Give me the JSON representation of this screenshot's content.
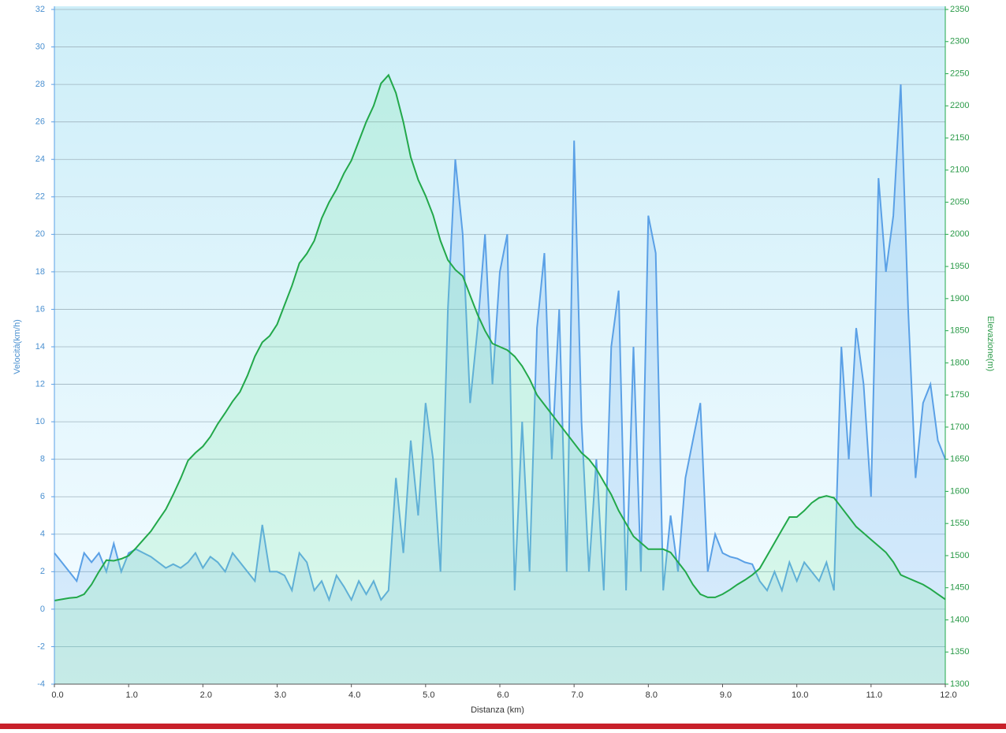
{
  "chart_data": {
    "type": "line",
    "x_label": "Distanza  (km)",
    "y_label": "Velocità(km/h)",
    "y2_label": "Elevazione(m)",
    "x": [
      0,
      0.1,
      0.2,
      0.3,
      0.4,
      0.5,
      0.6,
      0.7,
      0.8,
      0.9,
      1,
      1.1,
      1.2,
      1.3,
      1.4,
      1.5,
      1.6,
      1.7,
      1.8,
      1.9,
      2,
      2.1,
      2.2,
      2.3,
      2.4,
      2.5,
      2.6,
      2.7,
      2.8,
      2.9,
      3,
      3.1,
      3.2,
      3.3,
      3.4,
      3.5,
      3.6,
      3.7,
      3.8,
      3.9,
      4,
      4.1,
      4.2,
      4.3,
      4.4,
      4.5,
      4.6,
      4.7,
      4.8,
      4.9,
      5,
      5.1,
      5.2,
      5.3,
      5.4,
      5.5,
      5.6,
      5.7,
      5.8,
      5.9,
      6,
      6.1,
      6.2,
      6.3,
      6.4,
      6.5,
      6.6,
      6.7,
      6.8,
      6.9,
      7,
      7.1,
      7.2,
      7.3,
      7.4,
      7.5,
      7.6,
      7.7,
      7.8,
      7.9,
      8,
      8.1,
      8.2,
      8.3,
      8.4,
      8.5,
      8.6,
      8.7,
      8.8,
      8.9,
      9,
      9.1,
      9.2,
      9.3,
      9.4,
      9.5,
      9.6,
      9.7,
      9.8,
      9.9,
      10,
      10.1,
      10.2,
      10.3,
      10.4,
      10.5,
      10.6,
      10.7,
      10.8,
      10.9,
      11,
      11.1,
      11.2,
      11.3,
      11.4,
      11.5,
      11.6,
      11.7,
      11.8,
      11.9,
      12
    ],
    "series": [
      {
        "name": "Velocità",
        "color": "#5aa0e6",
        "axis": "y",
        "values": [
          3,
          2.5,
          2,
          1.5,
          3,
          2.5,
          3,
          2,
          3.5,
          2,
          3,
          3.2,
          3,
          2.8,
          2.5,
          2.2,
          2.4,
          2.2,
          2.5,
          3,
          2.2,
          2.8,
          2.5,
          2,
          3,
          2.5,
          2,
          1.5,
          4.5,
          2,
          2,
          1.8,
          1,
          3,
          2.5,
          1,
          1.5,
          0.5,
          1.8,
          1.2,
          0.5,
          1.5,
          0.8,
          1.5,
          0.5,
          1,
          7,
          3,
          9,
          5,
          11,
          8,
          2,
          16,
          24,
          20,
          11,
          15,
          20,
          12,
          18,
          20,
          1,
          10,
          2,
          15,
          19,
          8,
          16,
          2,
          25,
          10,
          2,
          8,
          1,
          14,
          17,
          1,
          14,
          2,
          21,
          19,
          1,
          5,
          2,
          7,
          9,
          11,
          2,
          4,
          3,
          2.8,
          2.7,
          2.5,
          2.4,
          1.5,
          1,
          2,
          1,
          2.5,
          1.5,
          2.5,
          2,
          1.5,
          2.5,
          1,
          14,
          8,
          15,
          12,
          6,
          23,
          18,
          21,
          28,
          16,
          7,
          11,
          12,
          9,
          8
        ]
      },
      {
        "name": "Elevazione",
        "color": "#22a84a",
        "axis": "y2",
        "values": [
          1430,
          1432,
          1434,
          1435,
          1440,
          1455,
          1475,
          1493,
          1492,
          1495,
          1500,
          1512,
          1525,
          1538,
          1555,
          1572,
          1595,
          1620,
          1648,
          1660,
          1670,
          1685,
          1705,
          1722,
          1740,
          1755,
          1780,
          1810,
          1832,
          1842,
          1860,
          1890,
          1920,
          1955,
          1970,
          1990,
          2025,
          2050,
          2070,
          2095,
          2115,
          2145,
          2175,
          2200,
          2235,
          2248,
          2220,
          2175,
          2120,
          2085,
          2060,
          2030,
          1990,
          1960,
          1945,
          1935,
          1905,
          1875,
          1850,
          1830,
          1825,
          1820,
          1810,
          1795,
          1775,
          1750,
          1735,
          1720,
          1705,
          1690,
          1675,
          1660,
          1650,
          1635,
          1615,
          1595,
          1570,
          1550,
          1530,
          1520,
          1510,
          1510,
          1510,
          1505,
          1490,
          1475,
          1455,
          1440,
          1435,
          1435,
          1440,
          1447,
          1455,
          1462,
          1470,
          1480,
          1500,
          1520,
          1540,
          1560,
          1560,
          1570,
          1582,
          1590,
          1593,
          1590,
          1575,
          1560,
          1545,
          1535,
          1525,
          1515,
          1505,
          1490,
          1470,
          1465,
          1460,
          1455,
          1448,
          1440,
          1432
        ]
      }
    ],
    "xlim": [
      0,
      12
    ],
    "xticks": [
      {
        "value": 0,
        "label": "0.0"
      },
      {
        "value": 1,
        "label": "1.0"
      },
      {
        "value": 2,
        "label": "2.0"
      },
      {
        "value": 3,
        "label": "3.0"
      },
      {
        "value": 4,
        "label": "4.0"
      },
      {
        "value": 5,
        "label": "5.0"
      },
      {
        "value": 6,
        "label": "6.0"
      },
      {
        "value": 7,
        "label": "7.0"
      },
      {
        "value": 8,
        "label": "8.0"
      },
      {
        "value": 9,
        "label": "9.0"
      },
      {
        "value": 10,
        "label": "10.0"
      },
      {
        "value": 11,
        "label": "11.0"
      },
      {
        "value": 12,
        "label": "12.0"
      }
    ],
    "ylim": [
      -4,
      32
    ],
    "yticks": [
      -4,
      -2,
      0,
      2,
      4,
      6,
      8,
      10,
      12,
      14,
      16,
      18,
      20,
      22,
      24,
      26,
      28,
      30,
      32
    ],
    "y2lim": [
      1300,
      2350
    ],
    "y2ticks": [
      1300,
      1350,
      1400,
      1450,
      1500,
      1550,
      1600,
      1650,
      1700,
      1750,
      1800,
      1850,
      1900,
      1950,
      2000,
      2050,
      2100,
      2150,
      2200,
      2250,
      2300,
      2350
    ],
    "grid": true
  }
}
